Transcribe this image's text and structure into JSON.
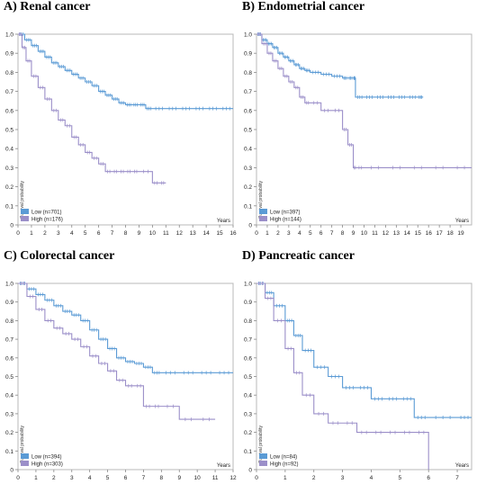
{
  "chart_data": [
    {
      "type": "line",
      "panel_title": "A) Renal cancer",
      "xlabel": "Years",
      "ylabel": "Survival probability",
      "xlim": [
        0,
        16
      ],
      "ylim": [
        0,
        1.0
      ],
      "xticks": [
        "0",
        "1",
        "2",
        "3",
        "4",
        "5",
        "6",
        "7",
        "8",
        "9",
        "10",
        "11",
        "12",
        "13",
        "14",
        "15",
        "16"
      ],
      "yticks": [
        "0",
        "0.1",
        "0.2",
        "0.3",
        "0.4",
        "0.5",
        "0.6",
        "0.7",
        "0.8",
        "0.9",
        "1.0"
      ],
      "legend_position": "bottom-left",
      "series": [
        {
          "name": "Low (n=701)",
          "color": "#5b9bd5",
          "x": [
            0,
            0.5,
            1,
            1.5,
            2,
            2.5,
            3,
            3.5,
            4,
            4.5,
            5,
            5.5,
            6,
            6.5,
            7,
            7.5,
            8,
            8.5,
            9,
            9.5,
            10,
            11,
            12,
            13,
            14,
            15,
            16
          ],
          "y": [
            1.0,
            0.97,
            0.94,
            0.91,
            0.88,
            0.85,
            0.83,
            0.81,
            0.79,
            0.77,
            0.75,
            0.73,
            0.7,
            0.68,
            0.66,
            0.64,
            0.63,
            0.63,
            0.63,
            0.61,
            0.61,
            0.61,
            0.61,
            0.61,
            0.61,
            0.61,
            0.61
          ]
        },
        {
          "name": "High (n=176)",
          "color": "#9b8fc9",
          "x": [
            0,
            0.3,
            0.6,
            1,
            1.5,
            2,
            2.5,
            3,
            3.5,
            4,
            4.5,
            5,
            5.5,
            6,
            6.5,
            7,
            7.5,
            8,
            8.5,
            9,
            10,
            10.5,
            11
          ],
          "y": [
            1.0,
            0.93,
            0.86,
            0.78,
            0.72,
            0.66,
            0.6,
            0.55,
            0.52,
            0.46,
            0.42,
            0.38,
            0.35,
            0.32,
            0.28,
            0.28,
            0.28,
            0.28,
            0.28,
            0.28,
            0.22,
            0.22,
            0.22
          ]
        }
      ]
    },
    {
      "type": "line",
      "panel_title": "B) Endometrial cancer",
      "xlabel": "Years",
      "ylabel": "Survival probability",
      "xlim": [
        0,
        20
      ],
      "ylim": [
        0,
        1.0
      ],
      "xticks": [
        "0",
        "1",
        "2",
        "3",
        "4",
        "5",
        "6",
        "7",
        "8",
        "9",
        "10",
        "11",
        "12",
        "13",
        "14",
        "15",
        "16",
        "17",
        "18",
        "19"
      ],
      "yticks": [
        "0",
        "0.1",
        "0.2",
        "0.3",
        "0.4",
        "0.5",
        "0.6",
        "0.7",
        "0.8",
        "0.9",
        "1.0"
      ],
      "legend_position": "bottom-left",
      "series": [
        {
          "name": "Low (n=397)",
          "color": "#5b9bd5",
          "x": [
            0,
            0.5,
            1,
            1.5,
            2,
            2.5,
            3,
            3.5,
            4,
            4.5,
            5,
            6,
            7,
            8,
            8.5,
            9,
            9.2,
            10,
            11,
            12,
            13,
            14,
            15,
            15.5
          ],
          "y": [
            1.0,
            0.97,
            0.95,
            0.93,
            0.9,
            0.88,
            0.86,
            0.84,
            0.82,
            0.81,
            0.8,
            0.79,
            0.78,
            0.77,
            0.77,
            0.77,
            0.67,
            0.67,
            0.67,
            0.67,
            0.67,
            0.67,
            0.67,
            0.67
          ]
        },
        {
          "name": "High (n=144)",
          "color": "#9b8fc9",
          "x": [
            0,
            0.5,
            1,
            1.5,
            2,
            2.5,
            3,
            3.5,
            4,
            4.5,
            5,
            6,
            7,
            8,
            8.5,
            9,
            9.3,
            10,
            12,
            14,
            16,
            18,
            20
          ],
          "y": [
            1.0,
            0.95,
            0.9,
            0.86,
            0.82,
            0.78,
            0.75,
            0.72,
            0.67,
            0.64,
            0.64,
            0.6,
            0.6,
            0.5,
            0.42,
            0.3,
            0.3,
            0.3,
            0.3,
            0.3,
            0.3,
            0.3,
            0.3
          ]
        }
      ]
    },
    {
      "type": "line",
      "panel_title": "C) Colorectal cancer",
      "xlabel": "Years",
      "ylabel": "Survival probability",
      "xlim": [
        0,
        12
      ],
      "ylim": [
        0,
        1.0
      ],
      "xticks": [
        "0",
        "1",
        "2",
        "3",
        "4",
        "5",
        "6",
        "7",
        "8",
        "9",
        "10",
        "11",
        "12"
      ],
      "yticks": [
        "0",
        "0.1",
        "0.2",
        "0.3",
        "0.4",
        "0.5",
        "0.6",
        "0.7",
        "0.8",
        "0.9",
        "1.0"
      ],
      "legend_position": "bottom-left",
      "series": [
        {
          "name": "Low (n=394)",
          "color": "#5b9bd5",
          "x": [
            0,
            0.5,
            1,
            1.5,
            2,
            2.5,
            3,
            3.5,
            4,
            4.5,
            5,
            5.5,
            6,
            6.5,
            7,
            7.5,
            8,
            9,
            10,
            11,
            12
          ],
          "y": [
            1.0,
            0.97,
            0.94,
            0.91,
            0.88,
            0.85,
            0.83,
            0.8,
            0.75,
            0.7,
            0.65,
            0.6,
            0.58,
            0.57,
            0.55,
            0.52,
            0.52,
            0.52,
            0.52,
            0.52,
            0.52
          ]
        },
        {
          "name": "High (n=303)",
          "color": "#9b8fc9",
          "x": [
            0,
            0.5,
            1,
            1.5,
            2,
            2.5,
            3,
            3.5,
            4,
            4.5,
            5,
            5.5,
            6,
            6.5,
            7,
            7.5,
            8,
            9,
            10,
            11
          ],
          "y": [
            1.0,
            0.93,
            0.86,
            0.8,
            0.76,
            0.73,
            0.7,
            0.66,
            0.61,
            0.57,
            0.53,
            0.48,
            0.45,
            0.45,
            0.34,
            0.34,
            0.34,
            0.27,
            0.27,
            0.27
          ]
        }
      ]
    },
    {
      "type": "line",
      "panel_title": "D) Pancreatic cancer",
      "xlabel": "Years",
      "ylabel": "Survival probability",
      "xlim": [
        0,
        7.5
      ],
      "ylim": [
        0,
        1.0
      ],
      "xticks": [
        "0",
        "1",
        "2",
        "3",
        "4",
        "5",
        "6",
        "7"
      ],
      "yticks": [
        "0",
        "0.1",
        "0.2",
        "0.3",
        "0.4",
        "0.5",
        "0.6",
        "0.7",
        "0.8",
        "0.9",
        "1.0"
      ],
      "legend_position": "bottom-left",
      "series": [
        {
          "name": "Low (n=84)",
          "color": "#5b9bd5",
          "x": [
            0,
            0.3,
            0.6,
            1,
            1.3,
            1.6,
            2,
            2.5,
            3,
            3.5,
            4,
            4.5,
            5,
            5.5,
            6,
            7,
            7.5
          ],
          "y": [
            1.0,
            0.95,
            0.88,
            0.8,
            0.72,
            0.64,
            0.55,
            0.5,
            0.44,
            0.44,
            0.38,
            0.38,
            0.38,
            0.28,
            0.28,
            0.28,
            0.28
          ]
        },
        {
          "name": "High (n=92)",
          "color": "#9b8fc9",
          "x": [
            0,
            0.3,
            0.6,
            1,
            1.3,
            1.6,
            2,
            2.5,
            3,
            3.5,
            4,
            4.5,
            5,
            5.5,
            6
          ],
          "y": [
            1.0,
            0.92,
            0.8,
            0.65,
            0.52,
            0.4,
            0.3,
            0.25,
            0.25,
            0.2,
            0.2,
            0.2,
            0.2,
            0.2,
            0.0
          ]
        }
      ]
    }
  ]
}
